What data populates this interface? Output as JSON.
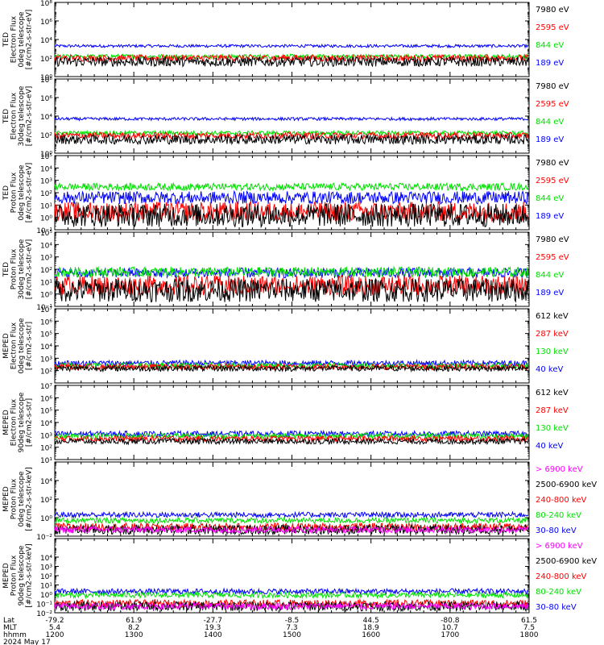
{
  "colors": {
    "black": "#000000",
    "red": "#ff0000",
    "green": "#00e000",
    "blue": "#0000ff",
    "magenta": "#ff00ff"
  },
  "chart_data": [
    {
      "type": "line",
      "instrument": "TED",
      "ylabel": [
        "TED",
        "Electron Flux",
        "0deg telescope",
        "[#/cm2-s-str-eV]"
      ],
      "yscale": "log",
      "ylim": [
        1,
        100000000
      ],
      "yticks": [
        {
          "v": 1,
          "label": "10⁰"
        },
        {
          "v": 100,
          "label": "10²"
        },
        {
          "v": 10000,
          "label": "10⁴"
        },
        {
          "v": 1000000,
          "label": "10⁶"
        },
        {
          "v": 100000000,
          "label": "10⁸"
        }
      ],
      "series": [
        {
          "name": "7980 eV",
          "color": "#000000",
          "base": 40,
          "peak_scale": 6,
          "jitter": 1.8
        },
        {
          "name": "2595 eV",
          "color": "#ff0000",
          "base": 100,
          "peak_scale": 10,
          "jitter": 1.5
        },
        {
          "name": "844 eV",
          "color": "#00e000",
          "base": 150,
          "peak_scale": 20,
          "jitter": 1.3
        },
        {
          "name": "189 eV",
          "color": "#0000ff",
          "base": 2000,
          "peak_scale": 60,
          "jitter": 1.2
        }
      ]
    },
    {
      "type": "line",
      "instrument": "TED",
      "ylabel": [
        "TED",
        "Electron Flux",
        "30deg telescope",
        "[#/cm2-s-str-eV]"
      ],
      "yscale": "log",
      "ylim": [
        1,
        100000000
      ],
      "yticks": [
        {
          "v": 1,
          "label": "10⁰"
        },
        {
          "v": 100,
          "label": "10²"
        },
        {
          "v": 10000,
          "label": "10⁴"
        },
        {
          "v": 1000000,
          "label": "10⁶"
        },
        {
          "v": 100000000,
          "label": "10⁸"
        }
      ],
      "series": [
        {
          "name": "7980 eV",
          "color": "#000000",
          "base": 30,
          "peak_scale": 6,
          "jitter": 1.8
        },
        {
          "name": "2595 eV",
          "color": "#ff0000",
          "base": 80,
          "peak_scale": 10,
          "jitter": 1.5
        },
        {
          "name": "844 eV",
          "color": "#00e000",
          "base": 150,
          "peak_scale": 25,
          "jitter": 1.3
        },
        {
          "name": "189 eV",
          "color": "#0000ff",
          "base": 5000,
          "peak_scale": 40,
          "jitter": 1.2
        }
      ]
    },
    {
      "type": "line",
      "instrument": "TED",
      "ylabel": [
        "TED",
        "Proton Flux",
        "0deg telescope",
        "[#/cm2-s-str-eV]"
      ],
      "yscale": "log",
      "ylim": [
        0.1,
        100000
      ],
      "yticks": [
        {
          "v": 0.1,
          "label": "10⁻¹"
        },
        {
          "v": 1,
          "label": "10⁰"
        },
        {
          "v": 10,
          "label": "10¹"
        },
        {
          "v": 100,
          "label": "10²"
        },
        {
          "v": 1000,
          "label": "10³"
        },
        {
          "v": 10000,
          "label": "10⁴"
        },
        {
          "v": 100000,
          "label": "10⁵"
        }
      ],
      "series": [
        {
          "name": "7980 eV",
          "color": "#000000",
          "base": 1.5,
          "peak_scale": 80,
          "jitter": 3
        },
        {
          "name": "2595 eV",
          "color": "#ff0000",
          "base": 3,
          "peak_scale": 60,
          "jitter": 2.5
        },
        {
          "name": "844 eV",
          "color": "#00e000",
          "base": 300,
          "peak_scale": 5,
          "jitter": 1.4
        },
        {
          "name": "189 eV",
          "color": "#0000ff",
          "base": 40,
          "peak_scale": 20,
          "jitter": 1.8
        }
      ]
    },
    {
      "type": "line",
      "instrument": "TED",
      "ylabel": [
        "TED",
        "Proton Flux",
        "30deg telescope",
        "[#/cm2-s-str-eV]"
      ],
      "yscale": "log",
      "ylim": [
        0.1,
        100000
      ],
      "yticks": [
        {
          "v": 0.1,
          "label": "10⁻¹"
        },
        {
          "v": 1,
          "label": "10⁰"
        },
        {
          "v": 10,
          "label": "10¹"
        },
        {
          "v": 100,
          "label": "10²"
        },
        {
          "v": 1000,
          "label": "10³"
        },
        {
          "v": 10000,
          "label": "10⁴"
        },
        {
          "v": 100000,
          "label": "10⁵"
        }
      ],
      "series": [
        {
          "name": "7980 eV",
          "color": "#000000",
          "base": 2,
          "peak_scale": 60,
          "jitter": 3
        },
        {
          "name": "2595 eV",
          "color": "#ff0000",
          "base": 5,
          "peak_scale": 40,
          "jitter": 2.5
        },
        {
          "name": "844 eV",
          "color": "#00e000",
          "base": 60,
          "peak_scale": 15,
          "jitter": 1.6
        },
        {
          "name": "189 eV",
          "color": "#0000ff",
          "base": 50,
          "peak_scale": 20,
          "jitter": 1.6
        }
      ]
    },
    {
      "type": "line",
      "instrument": "MEPED",
      "ylabel": [
        "MEPED",
        "Electron Flux",
        "0deg telescope",
        "[#/cm2-s-str]"
      ],
      "yscale": "log",
      "ylim": [
        10,
        10000000
      ],
      "yticks": [
        {
          "v": 100,
          "label": "10²"
        },
        {
          "v": 1000,
          "label": "10³"
        },
        {
          "v": 10000,
          "label": "10⁴"
        },
        {
          "v": 100000,
          "label": "10⁵"
        },
        {
          "v": 1000000,
          "label": "10⁶"
        },
        {
          "v": 10000000,
          "label": "10⁷"
        }
      ],
      "series": [
        {
          "name": "612 keV",
          "color": "#000000",
          "base": 150,
          "peak_scale": 15,
          "jitter": 1.3
        },
        {
          "name": "287 keV",
          "color": "#ff0000",
          "base": 200,
          "peak_scale": 20,
          "jitter": 1.3
        },
        {
          "name": "130 keV",
          "color": "#00e000",
          "base": 250,
          "peak_scale": 30,
          "jitter": 1.3
        },
        {
          "name": "40 keV",
          "color": "#0000ff",
          "base": 400,
          "peak_scale": 40,
          "jitter": 1.3
        }
      ]
    },
    {
      "type": "line",
      "instrument": "MEPED",
      "ylabel": [
        "MEPED",
        "Electron Flux",
        "90deg telescope",
        "[#/cm2-s-str]"
      ],
      "yscale": "log",
      "ylim": [
        10,
        10000000
      ],
      "yticks": [
        {
          "v": 10,
          "label": "10¹"
        },
        {
          "v": 100,
          "label": "10²"
        },
        {
          "v": 1000,
          "label": "10³"
        },
        {
          "v": 10000,
          "label": "10⁴"
        },
        {
          "v": 100000,
          "label": "10⁵"
        },
        {
          "v": 1000000,
          "label": "10⁶"
        },
        {
          "v": 10000000,
          "label": "10⁷"
        }
      ],
      "series": [
        {
          "name": "612 keV",
          "color": "#000000",
          "base": 300,
          "peak_scale": 200,
          "jitter": 1.3
        },
        {
          "name": "287 keV",
          "color": "#ff0000",
          "base": 500,
          "peak_scale": 3000,
          "jitter": 1.3
        },
        {
          "name": "130 keV",
          "color": "#00e000",
          "base": 800,
          "peak_scale": 4000,
          "jitter": 1.3
        },
        {
          "name": "40 keV",
          "color": "#0000ff",
          "base": 1200,
          "peak_scale": 4000,
          "jitter": 1.3
        }
      ]
    },
    {
      "type": "line",
      "instrument": "MEPED",
      "ylabel": [
        "MEPED",
        "Proton Flux",
        "0deg telescope",
        "[#/cm2-s-str-keV]"
      ],
      "yscale": "log",
      "ylim": [
        0.01,
        1000000
      ],
      "yticks": [
        {
          "v": 0.01,
          "label": "10⁻²"
        },
        {
          "v": 1,
          "label": "10⁰"
        },
        {
          "v": 100,
          "label": "10²"
        },
        {
          "v": 10000,
          "label": "10⁴"
        }
      ],
      "series": [
        {
          "name": "> 6900 keV",
          "color": "#ff00ff",
          "base": 0.05,
          "peak_scale": 1,
          "jitter": 1.5
        },
        {
          "name": "2500-6900 keV",
          "color": "#000000",
          "base": 0.05,
          "peak_scale": 3,
          "jitter": 1.8
        },
        {
          "name": "240-800 keV",
          "color": "#ff0000",
          "base": 0.1,
          "peak_scale": 10,
          "jitter": 1.6
        },
        {
          "name": "80-240 keV",
          "color": "#00e000",
          "base": 0.5,
          "peak_scale": 20,
          "jitter": 1.4
        },
        {
          "name": "30-80 keV",
          "color": "#0000ff",
          "base": 2,
          "peak_scale": 60,
          "jitter": 1.4
        }
      ]
    },
    {
      "type": "line",
      "instrument": "MEPED",
      "ylabel": [
        "MEPED",
        "Proton Flux",
        "90deg telescope",
        "[#/cm2-s-str-keV]"
      ],
      "yscale": "log",
      "ylim": [
        0.01,
        1000000
      ],
      "yticks": [
        {
          "v": 0.01,
          "label": "10⁻²"
        },
        {
          "v": 0.1,
          "label": "10⁻¹"
        },
        {
          "v": 1,
          "label": "10⁰"
        },
        {
          "v": 10,
          "label": "10¹"
        },
        {
          "v": 100,
          "label": "10²"
        },
        {
          "v": 1000,
          "label": "10³"
        },
        {
          "v": 10000,
          "label": "10⁴"
        }
      ],
      "series": [
        {
          "name": "> 6900 keV",
          "color": "#ff00ff",
          "base": 0.05,
          "peak_scale": 2,
          "jitter": 1.5
        },
        {
          "name": "2500-6900 keV",
          "color": "#000000",
          "base": 0.05,
          "peak_scale": 5,
          "jitter": 1.8
        },
        {
          "name": "240-800 keV",
          "color": "#ff0000",
          "base": 0.1,
          "peak_scale": 30,
          "jitter": 1.6
        },
        {
          "name": "80-240 keV",
          "color": "#00e000",
          "base": 0.8,
          "peak_scale": 80,
          "jitter": 1.4
        },
        {
          "name": "30-80 keV",
          "color": "#0000ff",
          "base": 2,
          "peak_scale": 200,
          "jitter": 1.4
        }
      ]
    }
  ],
  "passes": [
    {
      "center": 1225,
      "width": 12,
      "amp": 1.0
    },
    {
      "center": 1262,
      "width": 10,
      "amp": 0.6
    },
    {
      "center": 1322,
      "width": 14,
      "amp": 0.9
    },
    {
      "center": 1357,
      "width": 12,
      "amp": 1.0
    },
    {
      "center": 1418,
      "width": 12,
      "amp": 1.0
    },
    {
      "center": 1452,
      "width": 10,
      "amp": 0.6
    },
    {
      "center": 1512,
      "width": 12,
      "amp": 1.0
    },
    {
      "center": 1548,
      "width": 12,
      "amp": 0.9
    },
    {
      "center": 1605,
      "width": 10,
      "amp": 0.8
    },
    {
      "center": 1640,
      "width": 12,
      "amp": 0.9
    },
    {
      "center": 1700,
      "width": 12,
      "amp": 1.0
    },
    {
      "center": 1738,
      "width": 10,
      "amp": 0.8
    },
    {
      "center": 1795,
      "width": 8,
      "amp": 0.9
    }
  ],
  "xaxis": {
    "start_min": 720,
    "end_min": 1080,
    "tick_minutes": [
      720,
      780,
      840,
      900,
      960,
      1020,
      1080
    ],
    "row_labels": [
      "Lat",
      "MLT",
      "hhmm",
      "2024 May 17"
    ],
    "lat": [
      "-79.2",
      "61.9",
      "-27.7",
      "-8.5",
      "44.5",
      "-80.8",
      "61.5"
    ],
    "mlt": [
      "5.4",
      "8.2",
      "19.3",
      "7.3",
      "18.9",
      "10.7",
      "7.5"
    ],
    "hhmm": [
      "1200",
      "1300",
      "1400",
      "1500",
      "1600",
      "1700",
      "1800"
    ]
  }
}
